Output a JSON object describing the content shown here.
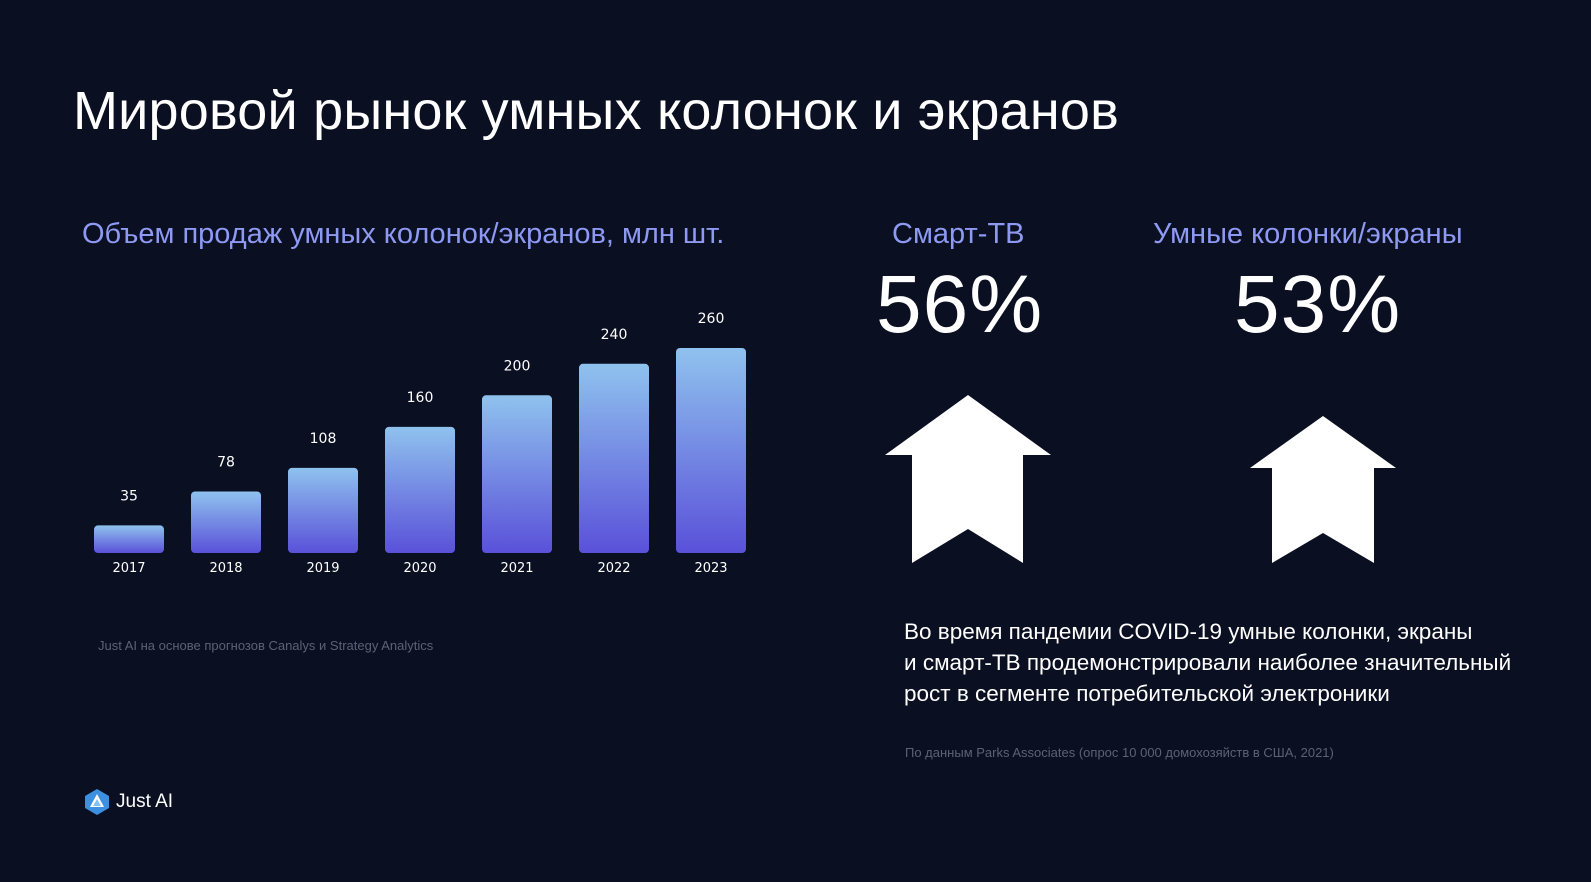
{
  "slide": {
    "title": "Мировой рынок умных колонок и экранов"
  },
  "chart_data": {
    "type": "bar",
    "title": "Объем продаж умных колонок/экранов, млн шт.",
    "categories": [
      "2017",
      "2018",
      "2019",
      "2020",
      "2021",
      "2022",
      "2023"
    ],
    "values": [
      35,
      78,
      108,
      160,
      200,
      240,
      260
    ],
    "ylim": [
      0,
      260
    ],
    "grid": false,
    "colors": {
      "bar_top": "#8fc2ee",
      "bar_bottom": "#5a51d9",
      "label": "#ffffff"
    }
  },
  "chart_source": "Just AI на основе прогнозов Canalys и Strategy Analytics",
  "stats": [
    {
      "label": "Смарт-ТВ",
      "value": "56%"
    },
    {
      "label": "Умные колонки/экраны",
      "value": "53%"
    }
  ],
  "note": {
    "line1": "Во время пандемии COVID-19 умные колонки, экраны",
    "line2": "и смарт-ТВ продемонстрировали наиболее значительный",
    "line3": "рост в сегменте потребительской электроники"
  },
  "note_source": "По данным Parks Associates (опрос 10 000 домохозяйств в США, 2021)",
  "logo": {
    "text": "Just AI",
    "icon": "just-ai-logo-icon"
  },
  "colors": {
    "background": "#0a0f21",
    "accent": "#8e99f3",
    "muted": "#5c6275"
  }
}
